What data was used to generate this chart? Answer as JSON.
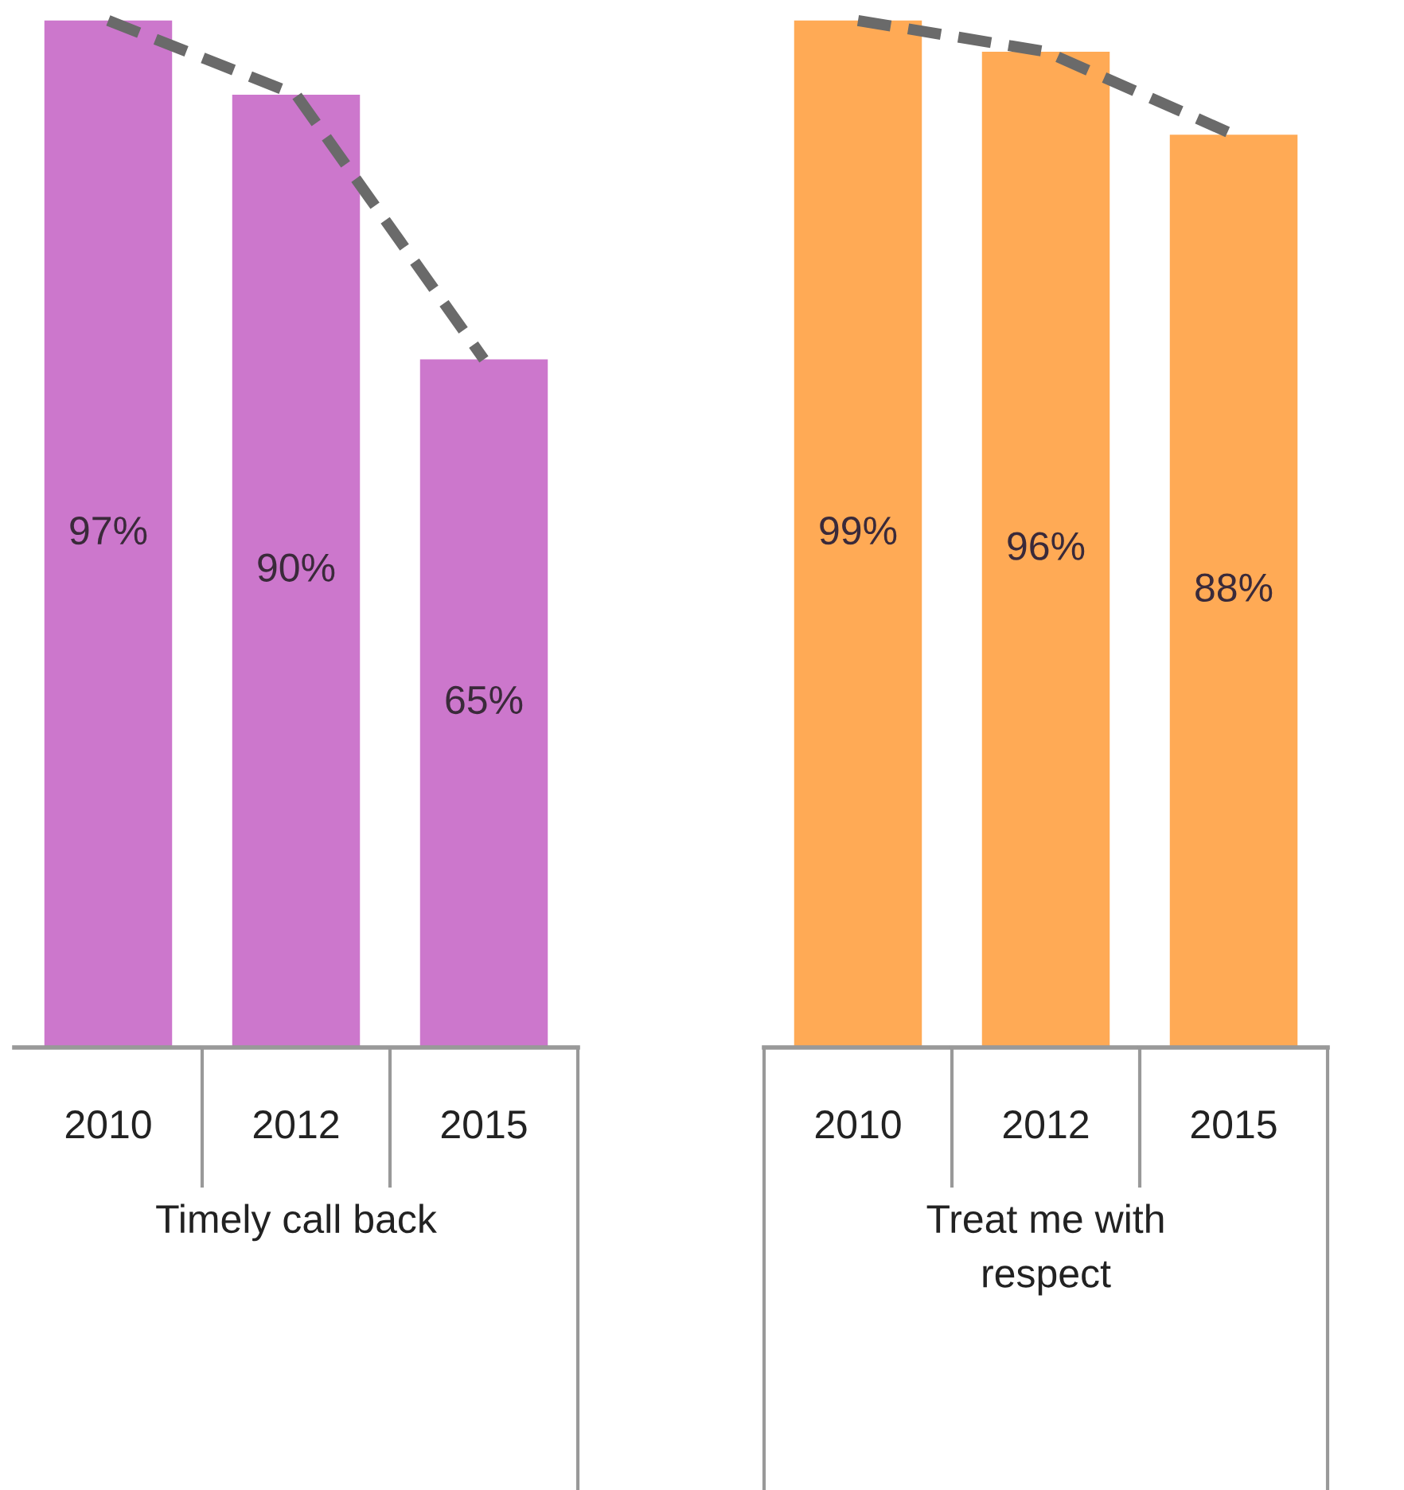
{
  "chart_data": [
    {
      "type": "bar",
      "xlabel": "Timely call back",
      "categories": [
        "2010",
        "2012",
        "2015"
      ],
      "tick_labels": "x",
      "series": [
        {
          "color": "#cc77cc",
          "values": [
            97,
            90,
            65
          ],
          "value_labels": [
            "97%",
            "90%",
            "65%"
          ]
        },
        {
          "type": "line",
          "color": "#6a6a6a",
          "line_style": "dashed",
          "values": [
            97,
            90,
            65
          ]
        }
      ]
    },
    {
      "type": "bar",
      "xlabel": "Treat me with\nrespect",
      "categories": [
        "2010",
        "2012",
        "2015"
      ],
      "tick_labels": "x",
      "series": [
        {
          "color": "#ffaa55",
          "values": [
            99,
            96,
            88
          ],
          "value_labels": [
            "99%",
            "96%",
            "88%"
          ]
        },
        {
          "type": "line",
          "color": "#6a6a6a",
          "line_style": "dashed",
          "values": [
            99,
            96,
            88
          ]
        }
      ]
    }
  ]
}
